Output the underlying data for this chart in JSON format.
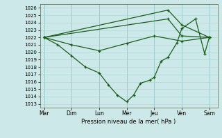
{
  "xlabel": "Pression niveau de la mer( hPa )",
  "days": [
    "Mar",
    "Dim",
    "Lun",
    "Mer",
    "Jeu",
    "Ven",
    "Sam"
  ],
  "day_positions": [
    0,
    1,
    2,
    3,
    4,
    5,
    6
  ],
  "yticks": [
    1013,
    1014,
    1015,
    1016,
    1017,
    1018,
    1019,
    1020,
    1021,
    1022,
    1023,
    1024,
    1025,
    1026
  ],
  "ylim": [
    1012.5,
    1026.5
  ],
  "xlim": [
    -0.15,
    6.3
  ],
  "bg_color": "#cce8e8",
  "grid_minor_color": "#aad4d4",
  "grid_major_color": "#88bbbb",
  "line_color": "#1a5c1a",
  "lw": 0.9,
  "marker_size": 3.5,
  "line1_x": [
    0,
    0.5,
    1.0,
    1.5,
    2.0,
    2.33,
    2.66,
    3.0,
    3.25,
    3.5,
    3.83,
    4.0,
    4.25,
    4.5,
    4.83,
    5.0,
    5.5,
    5.83,
    6.0
  ],
  "line1_y": [
    1022,
    1021,
    1019.5,
    1018,
    1017.2,
    1015.6,
    1014.2,
    1013.3,
    1014.2,
    1015.8,
    1016.2,
    1016.6,
    1018.8,
    1019.3,
    1021.3,
    1023.2,
    1024.5,
    1019.8,
    1022
  ],
  "line2_x": [
    0,
    1.0,
    2.0,
    3.0,
    4.0,
    5.0,
    6.0
  ],
  "line2_y": [
    1022,
    1021.0,
    1020.2,
    1021.2,
    1022.2,
    1021.5,
    1022.0
  ],
  "line3_x": [
    0,
    4.5,
    5.0,
    6.0
  ],
  "line3_y": [
    1022,
    1025.7,
    1023.7,
    1022.0
  ],
  "line4_x": [
    0,
    4.5,
    5.0,
    6.0
  ],
  "line4_y": [
    1022,
    1024.5,
    1022.2,
    1022.0
  ]
}
